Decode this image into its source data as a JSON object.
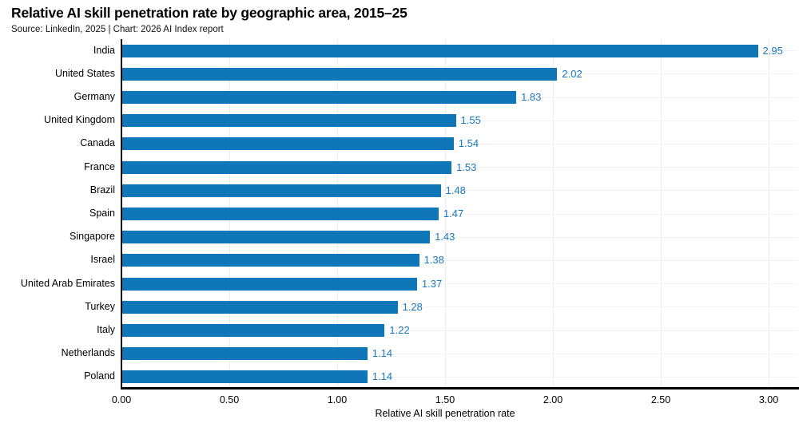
{
  "header": {
    "title": "Relative AI skill penetration rate by geographic area, 2015–25",
    "source": "Source: LinkedIn, 2025 | Chart: 2026 AI Index report"
  },
  "chart_data": {
    "type": "bar",
    "orientation": "horizontal",
    "title": "Relative AI skill penetration rate by geographic area, 2015–25",
    "subtitle": "Source: LinkedIn, 2025 | Chart: 2026 AI Index report",
    "xlabel": "Relative AI skill penetration rate",
    "ylabel": "",
    "categories": [
      "India",
      "United States",
      "Germany",
      "United Kingdom",
      "Canada",
      "France",
      "Brazil",
      "Spain",
      "Singapore",
      "Israel",
      "United Arab Emirates",
      "Turkey",
      "Italy",
      "Netherlands",
      "Poland"
    ],
    "values": [
      2.95,
      2.02,
      1.83,
      1.55,
      1.54,
      1.53,
      1.48,
      1.47,
      1.43,
      1.38,
      1.37,
      1.28,
      1.22,
      1.14,
      1.14
    ],
    "value_labels": [
      "2.95",
      "2.02",
      "1.83",
      "1.55",
      "1.54",
      "1.53",
      "1.48",
      "1.47",
      "1.43",
      "1.38",
      "1.37",
      "1.28",
      "1.22",
      "1.14",
      "1.14"
    ],
    "xlim": [
      0.0,
      3.0
    ],
    "x_ticks": [
      "0.00",
      "0.50",
      "1.00",
      "1.50",
      "2.00",
      "2.50",
      "3.00"
    ],
    "x_tick_values": [
      0.0,
      0.5,
      1.0,
      1.5,
      2.0,
      2.5,
      3.0
    ],
    "grid": "on",
    "legend": "none",
    "bar_color": "#0f77b8",
    "value_label_color": "#1878be",
    "axis_color": "#000000",
    "grid_color": "#ededed"
  }
}
